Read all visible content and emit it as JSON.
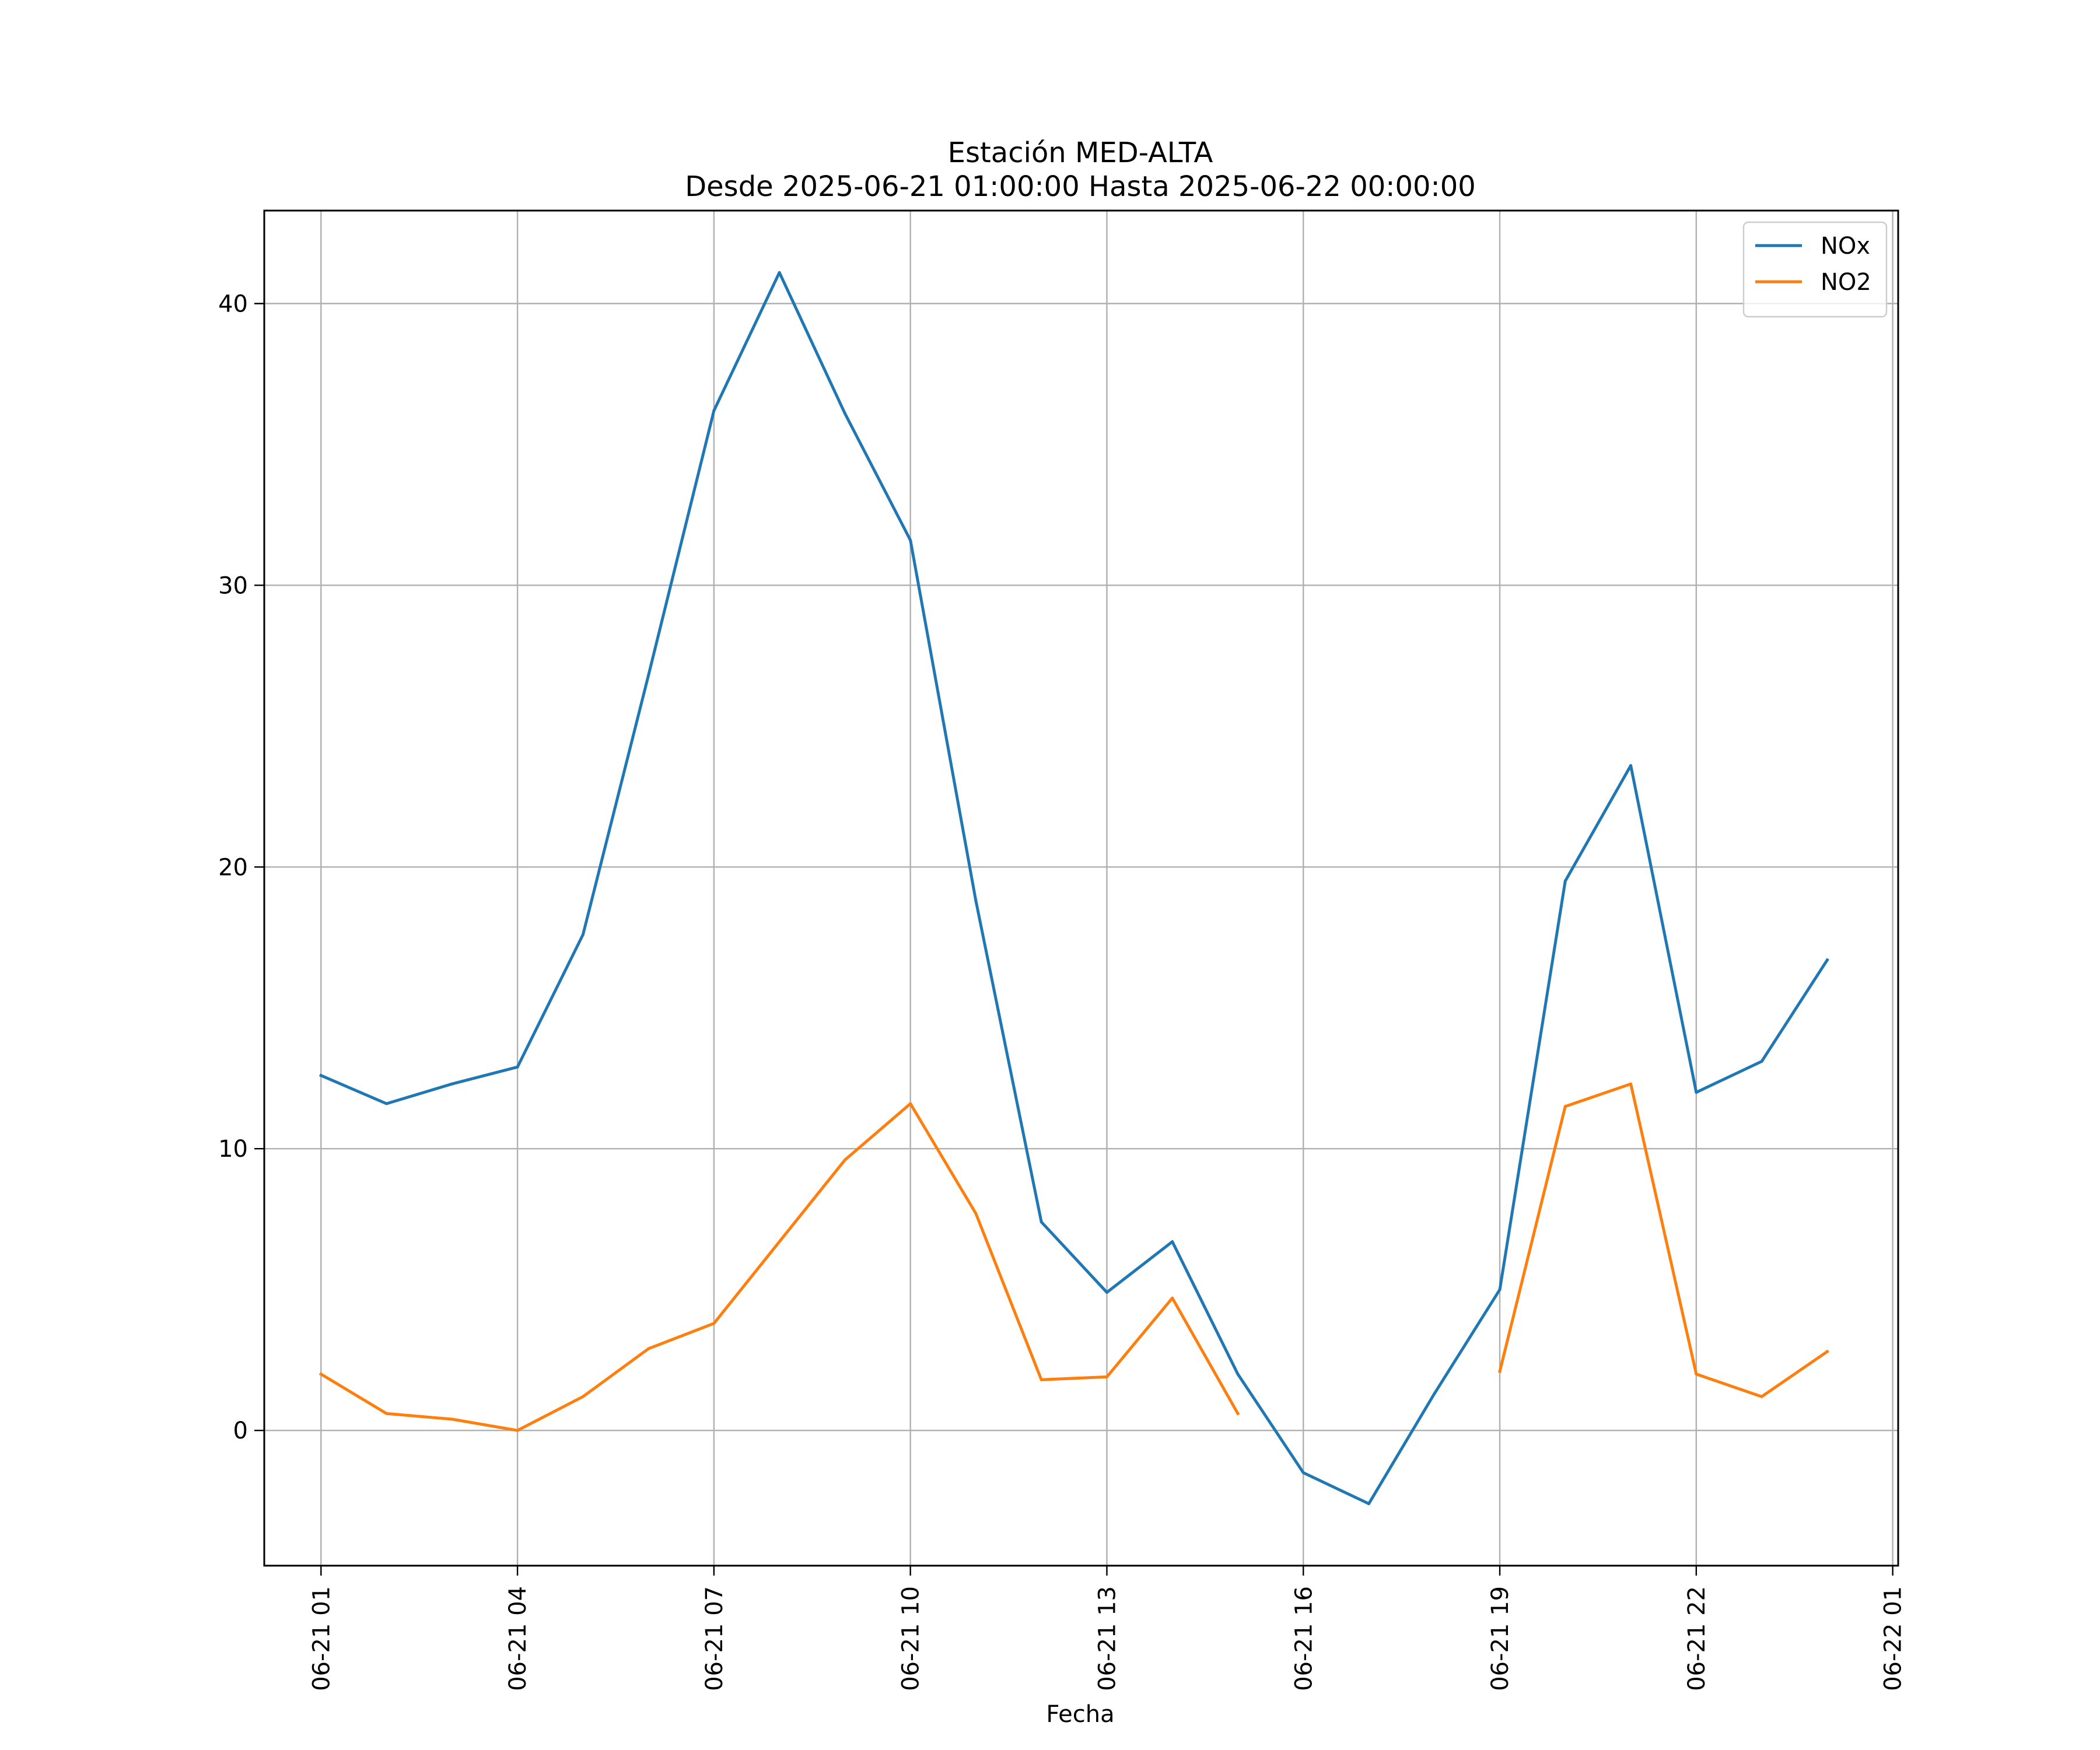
{
  "chart_data": {
    "type": "line",
    "title": "Estación MED-ALTA",
    "subtitle": "Desde 2025-06-21 01:00:00 Hasta 2025-06-22 00:00:00",
    "xlabel": "Fecha",
    "ylabel": "",
    "x": [
      "06-21 01",
      "06-21 02",
      "06-21 03",
      "06-21 04",
      "06-21 05",
      "06-21 06",
      "06-21 07",
      "06-21 08",
      "06-21 09",
      "06-21 10",
      "06-21 11",
      "06-21 12",
      "06-21 13",
      "06-21 14",
      "06-21 15",
      "06-21 16",
      "06-21 17",
      "06-21 18",
      "06-21 19",
      "06-21 20",
      "06-21 21",
      "06-21 22",
      "06-21 23",
      "06-22 00"
    ],
    "x_ticks": [
      "06-21 01",
      "06-21 04",
      "06-21 07",
      "06-21 10",
      "06-21 13",
      "06-21 16",
      "06-21 19",
      "06-21 22",
      "06-22 01"
    ],
    "y_ticks": [
      0,
      10,
      20,
      30,
      40
    ],
    "xlim": [
      "06-21 00:08",
      "06-22 01:05"
    ],
    "ylim": [
      -4.8,
      43.3
    ],
    "grid": true,
    "legend_position": "top-right",
    "series": [
      {
        "name": "NOx",
        "color": "#1f77b4",
        "values": [
          12.6,
          11.6,
          12.3,
          12.9,
          17.6,
          26.8,
          36.2,
          41.1,
          36.1,
          31.6,
          18.8,
          7.4,
          4.9,
          6.7,
          2.0,
          -1.5,
          -2.6,
          1.3,
          5.0,
          19.5,
          23.6,
          12.0,
          13.1,
          16.7
        ]
      },
      {
        "name": "NO2",
        "color": "#ff7f0e",
        "values": [
          2.0,
          0.6,
          0.4,
          0.0,
          1.2,
          2.9,
          3.8,
          6.7,
          9.6,
          11.6,
          7.7,
          1.8,
          1.9,
          4.7,
          0.6,
          null,
          null,
          null,
          2.1,
          11.5,
          12.3,
          2.0,
          1.2,
          2.8
        ]
      }
    ]
  }
}
